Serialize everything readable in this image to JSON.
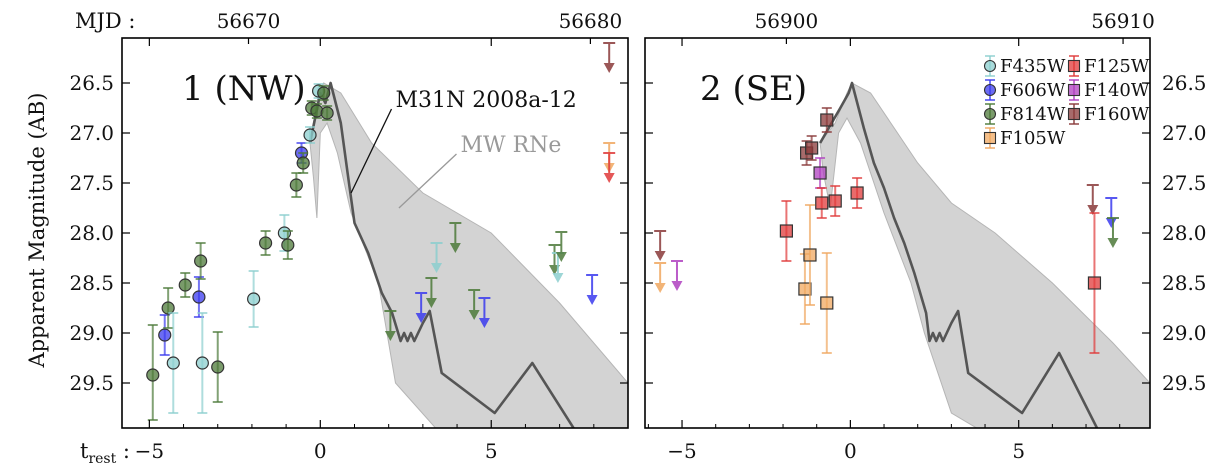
{
  "chart_data": {
    "type": "scatter",
    "ylabel": "Apparent Magnitude (AB)",
    "top_axis_label": "MJD :",
    "bottom_axis_label": "t",
    "bottom_axis_label_sub": "rest",
    "bottom_axis_label_suffix": " :",
    "yticks": [
      "26.5",
      "27.0",
      "27.5",
      "28.0",
      "28.5",
      "29.0",
      "29.5"
    ],
    "ylim": [
      29.95,
      26.05
    ],
    "legend_placement": "top-right of panel 2",
    "filters": [
      {
        "name": "F435W",
        "color": "#8ccfcf",
        "marker": "circle"
      },
      {
        "name": "F606W",
        "color": "#3b3bef",
        "marker": "circle"
      },
      {
        "name": "F814W",
        "color": "#4d7a3a",
        "marker": "circle"
      },
      {
        "name": "F105W",
        "color": "#f0a860",
        "marker": "square"
      },
      {
        "name": "F125W",
        "color": "#e03a3a",
        "marker": "square"
      },
      {
        "name": "F140W",
        "color": "#b040c0",
        "marker": "square"
      },
      {
        "name": "F160W",
        "color": "#8a3a3a",
        "marker": "square"
      }
    ],
    "panels": [
      {
        "label": "1 (NW)",
        "xlim": [
          -5.8,
          9.0
        ],
        "mjd_zero": 56672.1,
        "bottom_ticks": [
          {
            "v": -5,
            "t": "−5"
          },
          {
            "v": 0,
            "t": "0"
          },
          {
            "v": 5,
            "t": "5"
          }
        ],
        "top_ticks": [
          "56670",
          "56680"
        ],
        "annotations": [
          {
            "text": "M31N 2008a-12",
            "at": [
              2.2,
              26.7
            ],
            "arrow_to": [
              0.9,
              27.6
            ],
            "grey": false
          },
          {
            "text": "MW RNe",
            "at": [
              4.1,
              27.15
            ],
            "arrow_to": [
              2.3,
              27.75
            ],
            "grey": true
          }
        ],
        "band": {
          "upper": [
            [
              -0.3,
              27.1
            ],
            [
              -0.05,
              26.6
            ],
            [
              0.1,
              26.5
            ],
            [
              0.6,
              26.6
            ],
            [
              1.5,
              27.1
            ],
            [
              3,
              27.6
            ],
            [
              5,
              28.0
            ],
            [
              7,
              28.7
            ],
            [
              9,
              29.5
            ]
          ],
          "lower": [
            [
              9,
              30.0
            ],
            [
              5,
              30.0
            ],
            [
              3.5,
              30.0
            ],
            [
              2.2,
              29.5
            ],
            [
              1.7,
              28.5
            ],
            [
              0.9,
              27.8
            ],
            [
              0.5,
              27.2
            ],
            [
              0.2,
              26.9
            ],
            [
              0.0,
              27.0
            ],
            [
              -0.1,
              27.85
            ],
            [
              -0.2,
              27.45
            ],
            [
              -0.3,
              27.1
            ]
          ]
        },
        "model_line": [
          [
            -0.3,
            27.1
          ],
          [
            0.0,
            26.6
          ],
          [
            0.15,
            26.7
          ],
          [
            0.3,
            26.5
          ],
          [
            0.6,
            26.9
          ],
          [
            0.8,
            27.4
          ],
          [
            1.0,
            27.9
          ],
          [
            1.4,
            28.2
          ],
          [
            1.8,
            28.6
          ],
          [
            2.1,
            28.8
          ],
          [
            2.35,
            29.08
          ],
          [
            2.45,
            29.0
          ],
          [
            2.55,
            29.08
          ],
          [
            2.65,
            29.0
          ],
          [
            2.75,
            29.08
          ],
          [
            3.0,
            28.9
          ],
          [
            3.2,
            28.78
          ],
          [
            3.55,
            29.4
          ],
          [
            5.1,
            29.8
          ],
          [
            6.2,
            29.3
          ],
          [
            7.5,
            30.0
          ]
        ],
        "points": [
          {
            "f": "F814W",
            "x": -4.9,
            "y": 29.42,
            "lo": 0.45,
            "hi": 0.5
          },
          {
            "f": "F606W",
            "x": -4.55,
            "y": 29.02,
            "lo": 0.2,
            "hi": 0.2
          },
          {
            "f": "F814W",
            "x": -4.45,
            "y": 28.75,
            "lo": 0.2,
            "hi": 0.2
          },
          {
            "f": "F435W",
            "x": -4.3,
            "y": 29.3,
            "lo": 0.5,
            "hi": 0.5
          },
          {
            "f": "F814W",
            "x": -3.95,
            "y": 28.52,
            "lo": 0.12,
            "hi": 0.12
          },
          {
            "f": "F606W",
            "x": -3.55,
            "y": 28.64,
            "lo": 0.2,
            "hi": 0.2
          },
          {
            "f": "F814W",
            "x": -3.5,
            "y": 28.28,
            "lo": 0.18,
            "hi": 0.18
          },
          {
            "f": "F435W",
            "x": -3.45,
            "y": 29.3,
            "lo": 0.5,
            "hi": 0.5
          },
          {
            "f": "F814W",
            "x": -3.0,
            "y": 29.34,
            "lo": 0.35,
            "hi": 0.35
          },
          {
            "f": "F435W",
            "x": -1.95,
            "y": 28.66,
            "lo": 0.28,
            "hi": 0.28
          },
          {
            "f": "F814W",
            "x": -1.6,
            "y": 28.1,
            "lo": 0.12,
            "hi": 0.12
          },
          {
            "f": "F435W",
            "x": -1.05,
            "y": 28.0,
            "lo": 0.18,
            "hi": 0.18
          },
          {
            "f": "F814W",
            "x": -0.95,
            "y": 28.12,
            "lo": 0.14,
            "hi": 0.14
          },
          {
            "f": "F814W",
            "x": -0.7,
            "y": 27.52,
            "lo": 0.12,
            "hi": 0.12
          },
          {
            "f": "F606W",
            "x": -0.55,
            "y": 27.2,
            "lo": 0.1,
            "hi": 0.1
          },
          {
            "f": "F814W",
            "x": -0.5,
            "y": 27.3,
            "lo": 0.1,
            "hi": 0.1
          },
          {
            "f": "F435W",
            "x": -0.3,
            "y": 27.02,
            "lo": 0.08,
            "hi": 0.08
          },
          {
            "f": "F814W",
            "x": -0.25,
            "y": 26.75,
            "lo": 0.07,
            "hi": 0.07
          },
          {
            "f": "F814W",
            "x": -0.1,
            "y": 26.78,
            "lo": 0.07,
            "hi": 0.07
          },
          {
            "f": "F435W",
            "x": -0.05,
            "y": 26.58,
            "lo": 0.07,
            "hi": 0.07
          },
          {
            "f": "F814W",
            "x": 0.1,
            "y": 26.6,
            "lo": 0.07,
            "hi": 0.07
          },
          {
            "f": "F814W",
            "x": 0.2,
            "y": 26.8,
            "lo": 0.07,
            "hi": 0.07
          }
        ],
        "limits": [
          {
            "f": "F814W",
            "x": 2.05,
            "y": 28.78
          },
          {
            "f": "F606W",
            "x": 2.95,
            "y": 28.6
          },
          {
            "f": "F814W",
            "x": 3.25,
            "y": 28.45
          },
          {
            "f": "F435W",
            "x": 3.4,
            "y": 28.1
          },
          {
            "f": "F814W",
            "x": 3.95,
            "y": 27.9
          },
          {
            "f": "F814W",
            "x": 4.5,
            "y": 28.57
          },
          {
            "f": "F606W",
            "x": 4.8,
            "y": 28.65
          },
          {
            "f": "F814W",
            "x": 6.85,
            "y": 28.12
          },
          {
            "f": "F435W",
            "x": 6.95,
            "y": 28.2
          },
          {
            "f": "F814W",
            "x": 7.05,
            "y": 27.99
          },
          {
            "f": "F606W",
            "x": 7.95,
            "y": 28.42
          },
          {
            "f": "F160W",
            "x": 8.45,
            "y": 26.1
          },
          {
            "f": "F105W",
            "x": 8.45,
            "y": 27.1
          },
          {
            "f": "F125W",
            "x": 8.45,
            "y": 27.2
          }
        ]
      },
      {
        "label": "2 (SE)",
        "xlim": [
          -6.1,
          8.9
        ],
        "mjd_zero": 56901.9,
        "bottom_ticks": [
          {
            "v": -5,
            "t": "−5"
          },
          {
            "v": 0,
            "t": "0"
          },
          {
            "v": 5,
            "t": "5"
          }
        ],
        "top_ticks": [
          "56900",
          "56910"
        ],
        "annotations": [],
        "band": {
          "upper": [
            [
              -0.9,
              27.1
            ],
            [
              -0.45,
              26.9
            ],
            [
              -0.1,
              26.6
            ],
            [
              0.05,
              26.5
            ],
            [
              0.6,
              26.6
            ],
            [
              2.0,
              27.3
            ],
            [
              3.0,
              27.7
            ],
            [
              4.3,
              28.0
            ],
            [
              6.0,
              28.5
            ],
            [
              7.8,
              29.1
            ],
            [
              8.9,
              29.5
            ]
          ],
          "lower": [
            [
              8.9,
              30.0
            ],
            [
              4,
              30.0
            ],
            [
              3.0,
              29.8
            ],
            [
              2.2,
              29.0
            ],
            [
              1.8,
              28.5
            ],
            [
              1.0,
              27.8
            ],
            [
              0.3,
              27.1
            ],
            [
              -0.1,
              26.85
            ],
            [
              -0.35,
              27.0
            ],
            [
              -0.6,
              27.75
            ],
            [
              -0.8,
              27.4
            ],
            [
              -0.9,
              27.1
            ]
          ]
        },
        "model_line": [
          [
            -0.9,
            27.1
          ],
          [
            -0.3,
            26.75
          ],
          [
            -0.05,
            26.6
          ],
          [
            0.05,
            26.5
          ],
          [
            0.4,
            26.95
          ],
          [
            0.7,
            27.3
          ],
          [
            1.0,
            27.55
          ],
          [
            1.3,
            27.85
          ],
          [
            1.6,
            28.1
          ],
          [
            1.9,
            28.4
          ],
          [
            2.25,
            28.8
          ],
          [
            2.35,
            29.08
          ],
          [
            2.45,
            29.0
          ],
          [
            2.55,
            29.08
          ],
          [
            2.65,
            29.0
          ],
          [
            2.75,
            29.08
          ],
          [
            3.0,
            28.9
          ],
          [
            3.2,
            28.78
          ],
          [
            3.5,
            29.4
          ],
          [
            5.1,
            29.8
          ],
          [
            6.2,
            29.2
          ],
          [
            7.4,
            30.0
          ]
        ],
        "points": [
          {
            "f": "F125W",
            "x": -1.9,
            "y": 27.98,
            "lo": 0.3,
            "hi": 0.3
          },
          {
            "f": "F105W",
            "x": -1.35,
            "y": 28.56,
            "lo": 0.35,
            "hi": 0.35
          },
          {
            "f": "F160W",
            "x": -1.3,
            "y": 27.2,
            "lo": 0.12,
            "hi": 0.12
          },
          {
            "f": "F105W",
            "x": -1.2,
            "y": 28.22,
            "lo": 0.5,
            "hi": 0.5
          },
          {
            "f": "F160W",
            "x": -1.15,
            "y": 27.15,
            "lo": 0.12,
            "hi": 0.12
          },
          {
            "f": "F140W",
            "x": -0.9,
            "y": 27.4,
            "lo": 0.15,
            "hi": 0.15
          },
          {
            "f": "F125W",
            "x": -0.85,
            "y": 27.7,
            "lo": 0.15,
            "hi": 0.15
          },
          {
            "f": "F105W",
            "x": -0.7,
            "y": 28.7,
            "lo": 0.5,
            "hi": 0.5
          },
          {
            "f": "F160W",
            "x": -0.7,
            "y": 26.87,
            "lo": 0.12,
            "hi": 0.12
          },
          {
            "f": "F125W",
            "x": -0.45,
            "y": 27.68,
            "lo": 0.15,
            "hi": 0.15
          },
          {
            "f": "F125W",
            "x": 0.2,
            "y": 27.6,
            "lo": 0.15,
            "hi": 0.15
          },
          {
            "f": "F125W",
            "x": 7.25,
            "y": 28.5,
            "lo": 0.7,
            "hi": 0.7
          }
        ],
        "limits": [
          {
            "f": "F160W",
            "x": -5.65,
            "y": 27.98
          },
          {
            "f": "F105W",
            "x": -5.65,
            "y": 28.3
          },
          {
            "f": "F140W",
            "x": -5.15,
            "y": 28.28
          },
          {
            "f": "F160W",
            "x": 7.2,
            "y": 27.52
          },
          {
            "f": "F606W",
            "x": 7.75,
            "y": 27.65
          },
          {
            "f": "F814W",
            "x": 7.8,
            "y": 27.85
          }
        ]
      }
    ]
  }
}
